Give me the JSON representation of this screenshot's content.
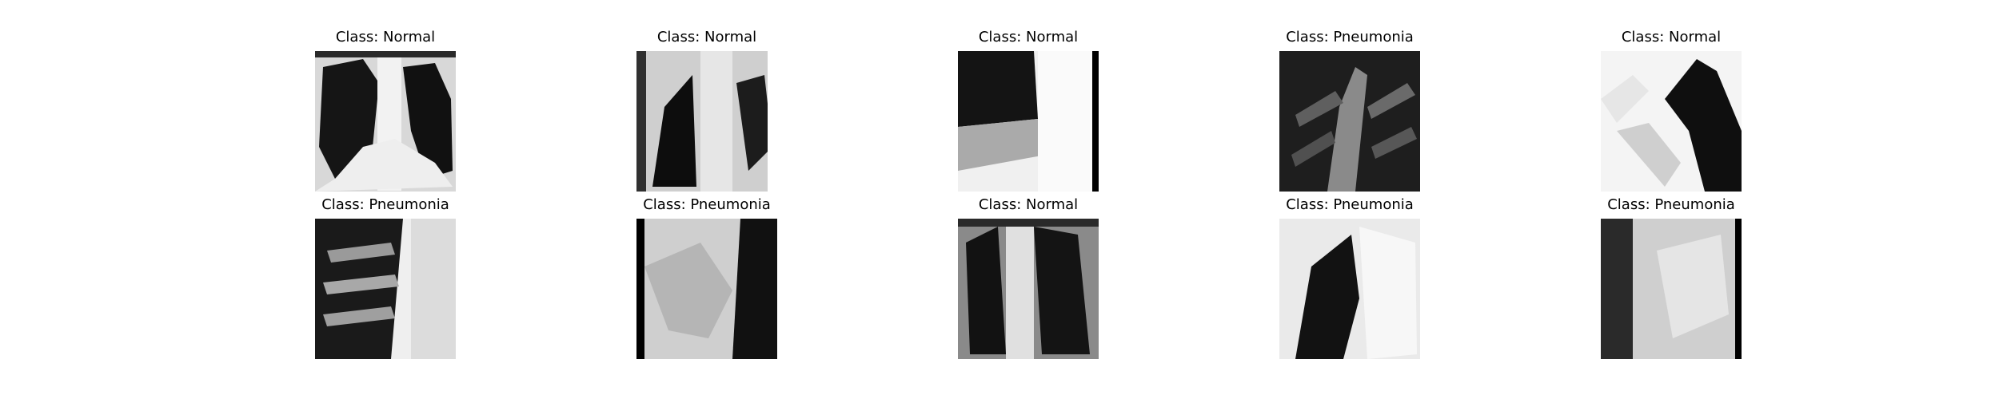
{
  "panels": [
    {
      "title": "Class: Normal"
    },
    {
      "title": "Class: Normal"
    },
    {
      "title": "Class: Normal"
    },
    {
      "title": "Class: Pneumonia"
    },
    {
      "title": "Class: Normal"
    },
    {
      "title": "Class: Pneumonia"
    },
    {
      "title": "Class: Pneumonia"
    },
    {
      "title": "Class: Normal"
    },
    {
      "title": "Class: Pneumonia"
    },
    {
      "title": "Class: Pneumonia"
    }
  ]
}
